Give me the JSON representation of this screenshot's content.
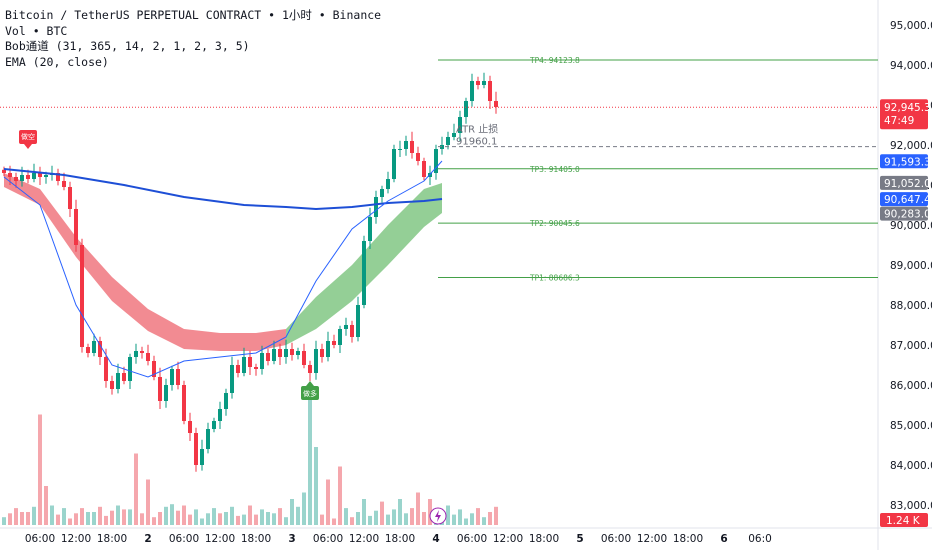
{
  "legend": {
    "title": "Bitcoin / TetherUS PERPETUAL CONTRACT • 1小时 • Binance",
    "vol": "Vol • BTC",
    "bob": "Bob通道 (31, 365, 14, 2, 1, 2, 3, 5)",
    "ema": "EMA (20, close)"
  },
  "chart_data": {
    "type": "candlestick",
    "title": "Bitcoin / TetherUS PERPETUAL CONTRACT • 1小时 • Binance",
    "y_axis": {
      "ticks": [
        "95,000.0",
        "94,000.0",
        "93,000.0",
        "92,000.0",
        "91,000.0",
        "90,000.0",
        "89,000.0",
        "88,000.0",
        "87,000.0",
        "86,000.0",
        "85,000.0",
        "84,000.0",
        "83,000.0"
      ],
      "tick_values": [
        95000,
        94000,
        93000,
        92000,
        91000,
        90000,
        89000,
        88000,
        87000,
        86000,
        85000,
        84000,
        83000
      ],
      "range": [
        82600,
        95400
      ]
    },
    "x_axis": {
      "ticks": [
        {
          "label": "06:00",
          "hour": 6,
          "bold": false
        },
        {
          "label": "12:00",
          "hour": 12,
          "bold": false
        },
        {
          "label": "18:00",
          "hour": 18,
          "bold": false
        },
        {
          "label": "2",
          "hour": 24,
          "bold": true
        },
        {
          "label": "06:00",
          "hour": 30,
          "bold": false
        },
        {
          "label": "12:00",
          "hour": 36,
          "bold": false
        },
        {
          "label": "18:00",
          "hour": 42,
          "bold": false
        },
        {
          "label": "3",
          "hour": 48,
          "bold": true
        },
        {
          "label": "06:00",
          "hour": 54,
          "bold": false
        },
        {
          "label": "12:00",
          "hour": 60,
          "bold": false
        },
        {
          "label": "18:00",
          "hour": 66,
          "bold": false
        },
        {
          "label": "4",
          "hour": 72,
          "bold": true
        },
        {
          "label": "06:00",
          "hour": 78,
          "bold": false
        },
        {
          "label": "12:00",
          "hour": 84,
          "bold": false
        },
        {
          "label": "18:00",
          "hour": 90,
          "bold": false
        },
        {
          "label": "5",
          "hour": 96,
          "bold": true
        },
        {
          "label": "06:00",
          "hour": 102,
          "bold": false
        },
        {
          "label": "12:00",
          "hour": 108,
          "bold": false
        },
        {
          "label": "18:00",
          "hour": 114,
          "bold": false
        },
        {
          "label": "6",
          "hour": 120,
          "bold": true
        },
        {
          "label": "06:0",
          "hour": 126,
          "bold": false
        }
      ]
    },
    "candles_close_path": [
      91300,
      91200,
      91100,
      91250,
      91150,
      91300,
      91200,
      91250,
      91300,
      91100,
      90950,
      90400,
      89500,
      86950,
      86800,
      87100,
      86700,
      86100,
      85900,
      86300,
      86100,
      86700,
      86850,
      86800,
      86600,
      86200,
      85600,
      86000,
      86400,
      86000,
      85100,
      84800,
      84000,
      84400,
      84900,
      85100,
      85400,
      85800,
      86500,
      86300,
      86700,
      86450,
      86400,
      86800,
      86600,
      86900,
      86700,
      86900,
      86750,
      86850,
      86500,
      86300,
      86900,
      86700,
      87100,
      87000,
      87400,
      87500,
      87200,
      88000,
      89600,
      90200,
      90700,
      90900,
      91150,
      91900,
      91900,
      92100,
      91800,
      91600,
      91200,
      91300,
      91900,
      92000,
      92200,
      92300,
      92700,
      93100,
      93600,
      93500,
      93600,
      93100,
      92950
    ],
    "bands": {
      "red_upper": [
        [
          0,
          91300
        ],
        [
          6,
          90900
        ],
        [
          12,
          89700
        ],
        [
          18,
          88700
        ],
        [
          24,
          87900
        ],
        [
          30,
          87400
        ],
        [
          36,
          87300
        ],
        [
          42,
          87300
        ],
        [
          47,
          87400
        ]
      ],
      "red_lower": [
        [
          0,
          90950
        ],
        [
          6,
          90500
        ],
        [
          12,
          89200
        ],
        [
          18,
          88100
        ],
        [
          24,
          87350
        ],
        [
          30,
          86900
        ],
        [
          36,
          86850
        ],
        [
          42,
          86850
        ],
        [
          47,
          87000
        ]
      ],
      "green_upper": [
        [
          47,
          87400
        ],
        [
          52,
          88200
        ],
        [
          58,
          89000
        ],
        [
          64,
          90000
        ],
        [
          70,
          90900
        ],
        [
          73,
          91050
        ]
      ],
      "green_lower": [
        [
          47,
          87000
        ],
        [
          52,
          87400
        ],
        [
          58,
          88100
        ],
        [
          64,
          89000
        ],
        [
          70,
          89950
        ],
        [
          73,
          90300
        ]
      ]
    },
    "ema20": [
      [
        0,
        91200
      ],
      [
        6,
        90500
      ],
      [
        12,
        88000
      ],
      [
        18,
        86500
      ],
      [
        24,
        86200
      ],
      [
        30,
        86600
      ],
      [
        36,
        86700
      ],
      [
        42,
        86800
      ],
      [
        47,
        87200
      ],
      [
        52,
        88600
      ],
      [
        58,
        89900
      ],
      [
        64,
        90600
      ],
      [
        70,
        91100
      ],
      [
        73,
        91600
      ]
    ],
    "slow_ma": [
      [
        0,
        91400
      ],
      [
        10,
        91250
      ],
      [
        20,
        91000
      ],
      [
        30,
        90700
      ],
      [
        40,
        90500
      ],
      [
        47,
        90450
      ],
      [
        52,
        90400
      ],
      [
        58,
        90450
      ],
      [
        64,
        90550
      ],
      [
        70,
        90600
      ],
      [
        73,
        90650
      ]
    ],
    "volume": [
      {
        "hour": 0,
        "v": 0.06,
        "up": true
      },
      {
        "hour": 3,
        "v": 0.1,
        "up": false
      },
      {
        "hour": 6,
        "v": 0.85,
        "up": false
      },
      {
        "hour": 7,
        "v": 0.3,
        "up": false
      },
      {
        "hour": 10,
        "v": 0.13,
        "up": true
      },
      {
        "hour": 14,
        "v": 0.1,
        "up": true
      },
      {
        "hour": 20,
        "v": 0.12,
        "up": false
      },
      {
        "hour": 22,
        "v": 0.55,
        "up": false
      },
      {
        "hour": 24,
        "v": 0.35,
        "up": false
      },
      {
        "hour": 28,
        "v": 0.16,
        "up": true
      },
      {
        "hour": 32,
        "v": 0.12,
        "up": true
      },
      {
        "hour": 36,
        "v": 0.09,
        "up": false
      },
      {
        "hour": 40,
        "v": 0.08,
        "up": true
      },
      {
        "hour": 44,
        "v": 0.1,
        "up": true
      },
      {
        "hour": 48,
        "v": 0.2,
        "up": true
      },
      {
        "hour": 50,
        "v": 0.25,
        "up": true
      },
      {
        "hour": 51,
        "v": 1.0,
        "up": true
      },
      {
        "hour": 52,
        "v": 0.6,
        "up": true
      },
      {
        "hour": 54,
        "v": 0.35,
        "up": false
      },
      {
        "hour": 56,
        "v": 0.45,
        "up": false
      },
      {
        "hour": 60,
        "v": 0.2,
        "up": true
      },
      {
        "hour": 63,
        "v": 0.18,
        "up": false
      },
      {
        "hour": 66,
        "v": 0.2,
        "up": true
      },
      {
        "hour": 69,
        "v": 0.25,
        "up": false
      },
      {
        "hour": 71,
        "v": 0.2,
        "up": false
      }
    ],
    "volume_label": "1.24 K",
    "levels": [
      {
        "name": "TP4",
        "label": "TP4: 94123.8",
        "value": 94123.8,
        "style": "solid",
        "color": "#43a047"
      },
      {
        "name": "TP3",
        "label": "TP3: 91405.0",
        "value": 91405.0,
        "style": "solid",
        "color": "#43a047"
      },
      {
        "name": "TP2",
        "label": "TP2: 90045.6",
        "value": 90045.6,
        "style": "solid",
        "color": "#43a047"
      },
      {
        "name": "TP1",
        "label": "TP1: 88686.3",
        "value": 88686.3,
        "style": "solid",
        "color": "#43a047"
      },
      {
        "name": "ATR",
        "label": "ATR 止损",
        "value_label": "91960.1",
        "value": 91960.1,
        "style": "dashed",
        "color": "#787b86"
      }
    ],
    "current_price": {
      "value": 92945.3,
      "label": "92,945.3",
      "countdown": "47:49",
      "color": "#f23645"
    },
    "price_tags": [
      {
        "label": "91,593.3",
        "value": 91593.3,
        "color": "#2962ff"
      },
      {
        "label": "91,052.0",
        "value": 91052.0,
        "color": "#787b86"
      },
      {
        "label": "90,647.4",
        "value": 90647.4,
        "color": "#2962ff"
      },
      {
        "label": "90,283.0",
        "value": 90283.0,
        "color": "#787b86"
      }
    ],
    "signals": [
      {
        "label": "做空",
        "hour": 4,
        "value": 92000,
        "color": "#f23645",
        "direction": "down"
      },
      {
        "label": "做多",
        "hour": 51,
        "value": 85950,
        "color": "#43a047",
        "direction": "up"
      }
    ],
    "colors": {
      "up": "#089981",
      "down": "#f23645",
      "up_vol": "#9ad4cc",
      "down_vol": "#f5a7ad",
      "red_band": "#f0777f",
      "green_band": "#81c784",
      "ema": "#2962ff",
      "slow_ma": "#1e4fd6"
    }
  }
}
